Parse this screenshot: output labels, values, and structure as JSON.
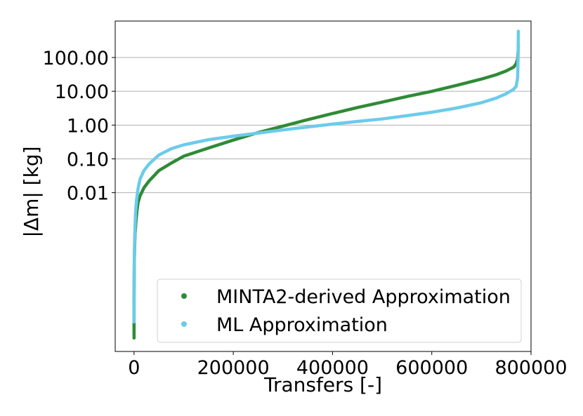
{
  "chart_data": {
    "type": "scatter",
    "title": "",
    "xlabel": "Transfers [-]",
    "ylabel": "|Δm| [kg]",
    "x_ticks": [
      {
        "value": 0,
        "label": "0"
      },
      {
        "value": 200000,
        "label": "200000"
      },
      {
        "value": 400000,
        "label": "400000"
      },
      {
        "value": 600000,
        "label": "600000"
      },
      {
        "value": 800000,
        "label": "800000"
      }
    ],
    "y_ticks": [
      {
        "value": 0.01,
        "label": "0.01"
      },
      {
        "value": 0.1,
        "label": "0.10"
      },
      {
        "value": 1,
        "label": "1.00"
      },
      {
        "value": 10,
        "label": "10.00"
      },
      {
        "value": 100,
        "label": "100.00"
      }
    ],
    "xlim": [
      -38000,
      800000
    ],
    "ylim": [
      2e-07,
      1200
    ],
    "y_scale": "log",
    "grid": "horizontal",
    "legend_position": "lower-right",
    "series": [
      {
        "name": "MINTA2-derived Approximation",
        "color": "#2e8b36",
        "points": [
          [
            0,
            5e-07
          ],
          [
            0,
            9e-07
          ],
          [
            0,
            2e-06
          ],
          [
            0,
            4e-06
          ],
          [
            0,
            8e-06
          ],
          [
            200,
            2e-05
          ],
          [
            500,
            8e-05
          ],
          [
            1000,
            0.0002
          ],
          [
            2000,
            0.0006
          ],
          [
            4000,
            0.0015
          ],
          [
            6000,
            0.003
          ],
          [
            8000,
            0.005
          ],
          [
            12000,
            0.008
          ],
          [
            20000,
            0.014
          ],
          [
            30000,
            0.022
          ],
          [
            50000,
            0.045
          ],
          [
            75000,
            0.075
          ],
          [
            100000,
            0.12
          ],
          [
            150000,
            0.21
          ],
          [
            200000,
            0.36
          ],
          [
            250000,
            0.6
          ],
          [
            300000,
            0.93
          ],
          [
            350000,
            1.45
          ],
          [
            400000,
            2.2
          ],
          [
            450000,
            3.3
          ],
          [
            500000,
            4.8
          ],
          [
            550000,
            7
          ],
          [
            600000,
            10
          ],
          [
            650000,
            15
          ],
          [
            700000,
            23
          ],
          [
            730000,
            31
          ],
          [
            750000,
            40
          ],
          [
            765000,
            52
          ],
          [
            770000,
            65
          ],
          [
            773000,
            90
          ],
          [
            774000,
            150
          ],
          [
            774500,
            230
          ]
        ]
      },
      {
        "name": "ML Approximation",
        "color": "#6ccbeb",
        "points": [
          [
            0,
            1.5e-06
          ],
          [
            0,
            3e-06
          ],
          [
            0,
            6e-06
          ],
          [
            200,
            3e-05
          ],
          [
            500,
            0.0001
          ],
          [
            1000,
            0.0003
          ],
          [
            2000,
            0.001
          ],
          [
            3000,
            0.0025
          ],
          [
            5000,
            0.006
          ],
          [
            8000,
            0.013
          ],
          [
            12000,
            0.025
          ],
          [
            20000,
            0.045
          ],
          [
            30000,
            0.07
          ],
          [
            50000,
            0.13
          ],
          [
            75000,
            0.2
          ],
          [
            100000,
            0.26
          ],
          [
            150000,
            0.37
          ],
          [
            200000,
            0.47
          ],
          [
            250000,
            0.58
          ],
          [
            300000,
            0.72
          ],
          [
            350000,
            0.88
          ],
          [
            400000,
            1.07
          ],
          [
            450000,
            1.28
          ],
          [
            500000,
            1.52
          ],
          [
            550000,
            1.9
          ],
          [
            600000,
            2.4
          ],
          [
            650000,
            3.2
          ],
          [
            700000,
            4.6
          ],
          [
            730000,
            6.3
          ],
          [
            750000,
            8.5
          ],
          [
            765000,
            11.5
          ],
          [
            770000,
            14
          ],
          [
            773000,
            25
          ],
          [
            774000,
            110
          ],
          [
            774500,
            600
          ]
        ]
      }
    ]
  }
}
